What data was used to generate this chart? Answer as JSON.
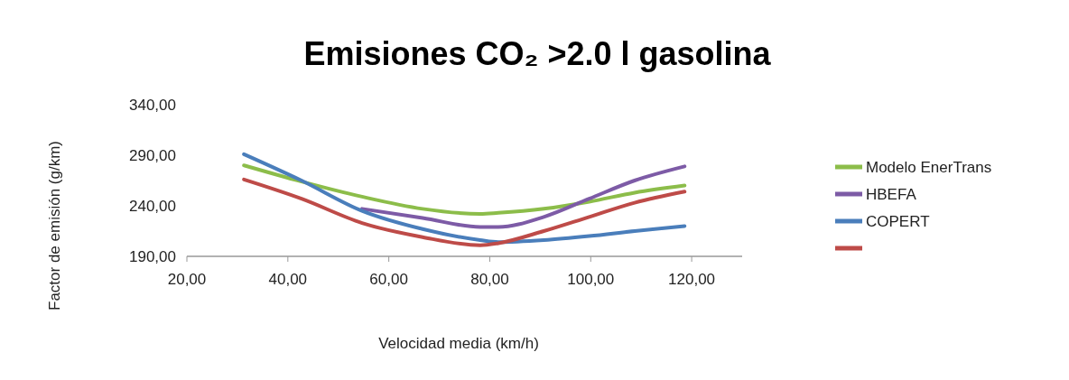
{
  "chart_data": {
    "type": "line",
    "title": "Emisiones CO₂ >2.0 l gasolina",
    "xlabel": "Velocidad media (km/h)",
    "ylabel": "Factor de emisión (g/km)",
    "x": [
      31.3,
      42.7,
      54.7,
      66.7,
      78.1,
      81.7,
      90.7,
      99.7,
      108.7,
      118.6
    ],
    "series": [
      {
        "name": "Modelo EnerTrans",
        "color": "#8cbd4a",
        "values": [
          280,
          264,
          249,
          237,
          232,
          233,
          237,
          244,
          253,
          260
        ]
      },
      {
        "name": "HBEFA",
        "color": "#7d5ba6",
        "values": [
          null,
          null,
          237,
          228,
          219,
          219,
          229,
          247,
          265,
          279
        ]
      },
      {
        "name": "COPERT",
        "color": "#4a7ebb",
        "values": [
          291,
          265,
          235,
          217,
          206,
          204,
          206,
          210,
          215,
          220
        ]
      },
      {
        "color": "#be4b48",
        "values": [
          266,
          247,
          223,
          209,
          201,
          203,
          215,
          229,
          243,
          254
        ]
      }
    ],
    "xlim": [
      20,
      130
    ],
    "xticks": [
      {
        "value": 20,
        "label": "20,00"
      },
      {
        "value": 40,
        "label": "40,00"
      },
      {
        "value": 60,
        "label": "60,00"
      },
      {
        "value": 80,
        "label": "80,00"
      },
      {
        "value": 100,
        "label": "100,00"
      },
      {
        "value": 120,
        "label": "120,00"
      }
    ],
    "ylim": [
      190,
      340
    ],
    "yticks": [
      {
        "value": 190,
        "label": "190,00"
      },
      {
        "value": 240,
        "label": "240,00"
      },
      {
        "value": 290,
        "label": "290,00"
      },
      {
        "value": 340,
        "label": "340,00"
      }
    ],
    "grid": false,
    "legend": "right",
    "marker": "none",
    "line_style": "solid"
  }
}
